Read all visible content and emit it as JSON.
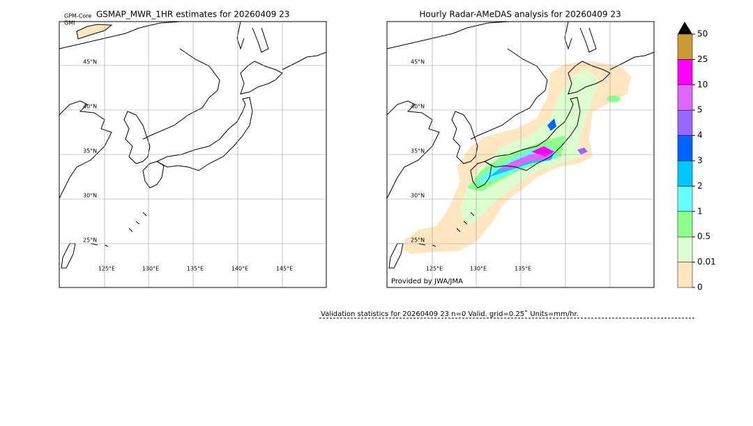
{
  "left_map": {
    "title": "GSMAP_MWR_1HR estimates for 20260409 23",
    "satellite": "GPM-Core",
    "sensor": "GMI",
    "lat_labels": [
      "45°N",
      "40°N",
      "35°N",
      "30°N",
      "25°N"
    ],
    "lon_labels": [
      "125°E",
      "130°E",
      "135°E",
      "140°E",
      "145°E"
    ]
  },
  "right_map": {
    "title": "Hourly Radar-AMeDAS analysis for 20260409 23",
    "lat_labels": [
      "45°N",
      "40°N",
      "35°N",
      "30°N",
      "25°N"
    ],
    "lon_labels": [
      "125°E",
      "130°E",
      "135°E"
    ],
    "credit": "Provided by JWA/JMA"
  },
  "colorbar": {
    "labels": [
      "0",
      "0.01",
      "0.5",
      "1",
      "2",
      "3",
      "4",
      "5",
      "10",
      "25",
      "50"
    ],
    "colors": [
      "#fee6c0",
      "#dcffd0",
      "#8cff8c",
      "#66ffff",
      "#00c8ff",
      "#0064ff",
      "#9966ff",
      "#dd66ff",
      "#ff00ff",
      "#cc9933"
    ]
  },
  "validation": "Validation statistics for 20260409 23  n=0 Valid. grid=0.25˚ Units=mm/hr."
}
